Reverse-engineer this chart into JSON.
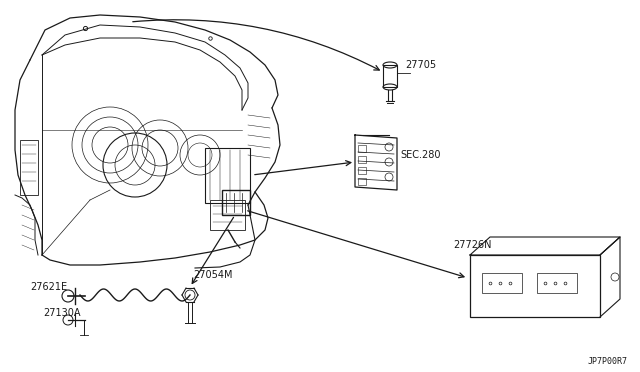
{
  "bg_color": "#FFFFFF",
  "line_color": "#1a1a1a",
  "diagram_id": "JP7P00R7",
  "label_27705": "27705",
  "label_sec280": "SEC.280",
  "label_27726N": "27726N",
  "label_27054M": "27054M",
  "label_27621E": "27621E",
  "label_27130A": "27130A",
  "fontsize_label": 7,
  "fontsize_id": 6
}
